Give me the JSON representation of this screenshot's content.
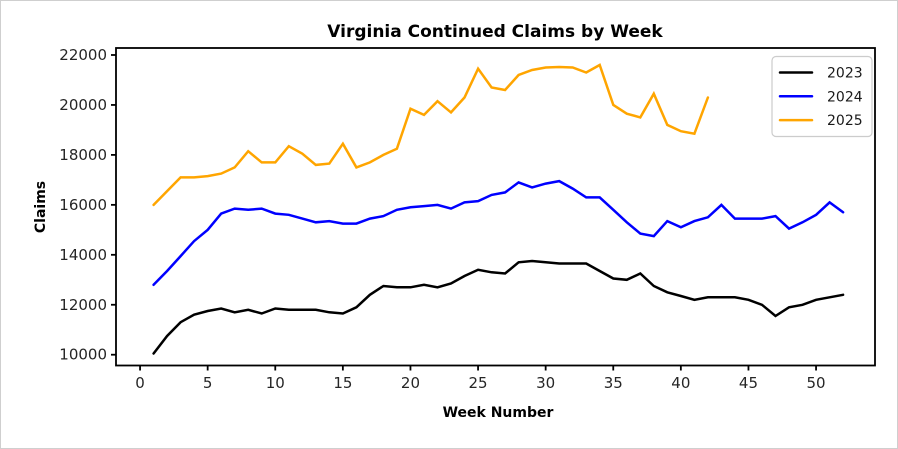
{
  "figure": {
    "background": "#ffffff",
    "border_color": "#cfcfcf"
  },
  "chart_data": {
    "type": "line",
    "title": "Virginia Continued Claims by Week",
    "xlabel": "Week Number",
    "ylabel": "Claims",
    "x_ticks": [
      0,
      5,
      10,
      15,
      20,
      25,
      30,
      35,
      40,
      45,
      50
    ],
    "y_ticks": [
      10000,
      12000,
      14000,
      16000,
      18000,
      20000,
      22000
    ],
    "xlim": [
      -1.78,
      54.36
    ],
    "ylim": [
      9568,
      22280
    ],
    "grid": false,
    "axis_color": "#000000",
    "tick_label_color": "#262626",
    "legend": {
      "position": "upper right",
      "border_color": "#cccccc",
      "background": "#ffffff",
      "entries": [
        "2023",
        "2024",
        "2025"
      ]
    },
    "series": [
      {
        "name": "2023",
        "color": "#000000",
        "weeks": [
          1,
          2,
          3,
          4,
          5,
          6,
          7,
          8,
          9,
          10,
          11,
          12,
          13,
          14,
          15,
          16,
          17,
          18,
          19,
          20,
          21,
          22,
          23,
          24,
          25,
          26,
          27,
          28,
          29,
          30,
          31,
          32,
          33,
          34,
          35,
          36,
          37,
          38,
          39,
          40,
          41,
          42,
          43,
          44,
          45,
          46,
          47,
          48,
          49,
          50,
          51,
          52
        ],
        "values": [
          10050,
          10750,
          11300,
          11600,
          11750,
          11850,
          11700,
          11800,
          11650,
          11850,
          11800,
          11800,
          11800,
          11700,
          11650,
          11900,
          12400,
          12750,
          12700,
          12700,
          12800,
          12700,
          12850,
          13150,
          13400,
          13300,
          13250,
          13700,
          13750,
          13700,
          13650,
          13650,
          13650,
          13350,
          13050,
          13000,
          13250,
          12750,
          12500,
          12350,
          12200,
          12300,
          12300,
          12300,
          12200,
          12000,
          11550,
          11900,
          12000,
          12200,
          12300,
          12400
        ]
      },
      {
        "name": "2024",
        "color": "#0000ff",
        "weeks": [
          1,
          2,
          3,
          4,
          5,
          6,
          7,
          8,
          9,
          10,
          11,
          12,
          13,
          14,
          15,
          16,
          17,
          18,
          19,
          20,
          21,
          22,
          23,
          24,
          25,
          26,
          27,
          28,
          29,
          30,
          31,
          32,
          33,
          34,
          35,
          36,
          37,
          38,
          39,
          40,
          41,
          42,
          43,
          44,
          45,
          46,
          47,
          48,
          49,
          50,
          51,
          52
        ],
        "values": [
          12800,
          13350,
          13950,
          14550,
          15000,
          15650,
          15850,
          15800,
          15850,
          15650,
          15600,
          15450,
          15300,
          15350,
          15250,
          15250,
          15450,
          15550,
          15800,
          15900,
          15950,
          16000,
          15850,
          16100,
          16150,
          16400,
          16500,
          16900,
          16700,
          16850,
          16950,
          16650,
          16300,
          16300,
          15800,
          15300,
          14850,
          14750,
          15350,
          15100,
          15350,
          15500,
          16000,
          15450,
          15450,
          15450,
          15550,
          15050,
          15300,
          15600,
          16100,
          15700
        ]
      },
      {
        "name": "2025",
        "color": "#ffa500",
        "weeks": [
          1,
          2,
          3,
          4,
          5,
          6,
          7,
          8,
          9,
          10,
          11,
          12,
          13,
          14,
          15,
          16,
          17,
          18,
          19,
          20,
          21,
          22,
          23,
          24,
          25,
          26,
          27,
          28,
          29,
          30,
          31,
          32,
          33,
          34,
          35,
          36,
          37,
          38,
          39,
          40,
          41,
          42
        ],
        "values": [
          16000,
          16550,
          17100,
          17100,
          17150,
          17250,
          17500,
          18150,
          17700,
          17700,
          18350,
          18050,
          17600,
          17650,
          18450,
          17500,
          17700,
          18000,
          18250,
          19850,
          19600,
          20150,
          19700,
          20300,
          21450,
          20700,
          20600,
          21200,
          21400,
          21500,
          21520,
          21500,
          21300,
          21600,
          20000,
          19650,
          19500,
          20450,
          19200,
          18950,
          18850,
          20300
        ]
      }
    ]
  }
}
